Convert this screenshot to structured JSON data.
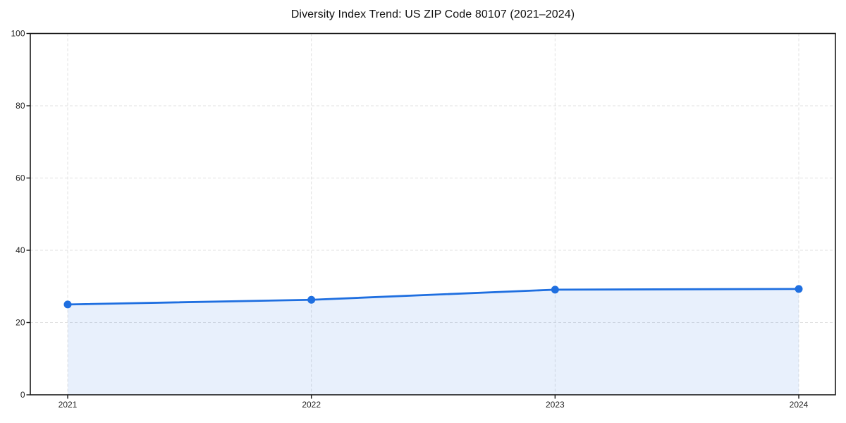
{
  "chart_data": {
    "type": "area",
    "title": "Diversity Index Trend: US ZIP Code 80107 (2021–2024)",
    "categories": [
      "2021",
      "2022",
      "2023",
      "2024"
    ],
    "values": [
      25.0,
      26.3,
      29.1,
      29.3
    ],
    "xlabel": "",
    "ylabel": "",
    "ylim": [
      0,
      100
    ],
    "yticks": [
      0,
      20,
      40,
      60,
      80,
      100
    ],
    "grid": "dashed",
    "legend": "none",
    "marker": "circle",
    "line_color": "#1f6fe0",
    "fill_color": "rgba(31,111,224,0.10)",
    "grid_color": "#e0e0e0",
    "axis_color": "#1a1a1a",
    "tick_label_color": "#222222",
    "background": "#ffffff"
  }
}
